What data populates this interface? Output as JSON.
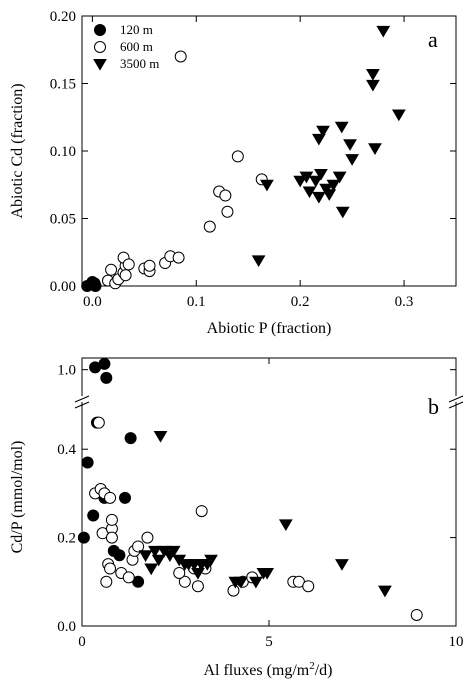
{
  "chart_data": [
    {
      "type": "scatter",
      "panel_label": "a",
      "xlabel": "Abiotic P (fraction)",
      "ylabel": "Abiotic Cd (fraction)",
      "xlim": [
        -0.01,
        0.35
      ],
      "ylim": [
        0,
        0.2
      ],
      "xticks": [
        {
          "value": 0.0,
          "label": "0.0"
        },
        {
          "value": 0.1,
          "label": "0.1"
        },
        {
          "value": 0.2,
          "label": "0.2"
        },
        {
          "value": 0.3,
          "label": "0.3"
        }
      ],
      "yticks": [
        {
          "value": 0.0,
          "label": "0.00"
        },
        {
          "value": 0.05,
          "label": "0.05"
        },
        {
          "value": 0.1,
          "label": "0.10"
        },
        {
          "value": 0.15,
          "label": "0.15"
        },
        {
          "value": 0.2,
          "label": "0.20"
        }
      ],
      "legend_position": "top-left",
      "series": [
        {
          "name": "120 m",
          "marker": "filled-circle",
          "points": [
            [
              -0.005,
              0.0
            ],
            [
              0.0,
              0.001
            ],
            [
              0.002,
              0.002
            ],
            [
              0.003,
              0.0
            ],
            [
              0.0,
              0.003
            ]
          ]
        },
        {
          "name": "600 m",
          "marker": "open-circle",
          "points": [
            [
              0.015,
              0.004
            ],
            [
              0.022,
              0.002
            ],
            [
              0.018,
              0.012
            ],
            [
              0.025,
              0.005
            ],
            [
              0.03,
              0.01
            ],
            [
              0.032,
              0.015
            ],
            [
              0.03,
              0.021
            ],
            [
              0.035,
              0.016
            ],
            [
              0.032,
              0.008
            ],
            [
              0.05,
              0.013
            ],
            [
              0.055,
              0.011
            ],
            [
              0.055,
              0.015
            ],
            [
              0.07,
              0.017
            ],
            [
              0.075,
              0.022
            ],
            [
              0.083,
              0.021
            ],
            [
              0.085,
              0.17
            ],
            [
              0.113,
              0.044
            ],
            [
              0.122,
              0.07
            ],
            [
              0.128,
              0.067
            ],
            [
              0.13,
              0.055
            ],
            [
              0.14,
              0.096
            ],
            [
              0.163,
              0.079
            ]
          ]
        },
        {
          "name": "3500 m",
          "marker": "filled-triangle-down",
          "points": [
            [
              0.16,
              0.019
            ],
            [
              0.168,
              0.075
            ],
            [
              0.2,
              0.078
            ],
            [
              0.206,
              0.081
            ],
            [
              0.209,
              0.07
            ],
            [
              0.215,
              0.078
            ],
            [
              0.218,
              0.066
            ],
            [
              0.22,
              0.083
            ],
            [
              0.225,
              0.072
            ],
            [
              0.228,
              0.068
            ],
            [
              0.232,
              0.075
            ],
            [
              0.238,
              0.081
            ],
            [
              0.241,
              0.055
            ],
            [
              0.218,
              0.109
            ],
            [
              0.222,
              0.115
            ],
            [
              0.24,
              0.118
            ],
            [
              0.248,
              0.105
            ],
            [
              0.25,
              0.094
            ],
            [
              0.27,
              0.157
            ],
            [
              0.27,
              0.149
            ],
            [
              0.272,
              0.102
            ],
            [
              0.28,
              0.189
            ],
            [
              0.295,
              0.127
            ]
          ]
        }
      ]
    },
    {
      "type": "scatter",
      "panel_label": "b",
      "xlabel_prefix": "Al fluxes (mg/m",
      "xlabel_sup": "2",
      "xlabel_suffix": "/d)",
      "ylabel": "Cd/P (mmol/mol)",
      "xlim": [
        0,
        10
      ],
      "y_axis_break": true,
      "ylim_lower": [
        0,
        0.5
      ],
      "ylim_upper": [
        0.9,
        1.05
      ],
      "xticks": [
        {
          "value": 0,
          "label": "0"
        },
        {
          "value": 5,
          "label": "5"
        },
        {
          "value": 10,
          "label": "10"
        }
      ],
      "yticks": [
        {
          "value": 0.0,
          "label": "0.0"
        },
        {
          "value": 0.2,
          "label": "0.2"
        },
        {
          "value": 0.4,
          "label": "0.4"
        },
        {
          "value": 1.0,
          "label": "1.0"
        }
      ],
      "series": [
        {
          "name": "120 m",
          "marker": "filled-circle",
          "points": [
            [
              0.05,
              0.2
            ],
            [
              0.15,
              0.37
            ],
            [
              0.3,
              0.25
            ],
            [
              0.35,
              1.01
            ],
            [
              0.6,
              0.29
            ],
            [
              0.6,
              1.025
            ],
            [
              0.65,
              0.965
            ],
            [
              0.85,
              0.17
            ],
            [
              1.15,
              0.29
            ],
            [
              1.3,
              0.425
            ],
            [
              1.5,
              0.1
            ],
            [
              0.4,
              0.46
            ],
            [
              1.0,
              0.16
            ]
          ]
        },
        {
          "name": "600 m",
          "marker": "open-circle",
          "points": [
            [
              0.35,
              0.3
            ],
            [
              0.45,
              0.46
            ],
            [
              0.5,
              0.31
            ],
            [
              0.55,
              0.21
            ],
            [
              0.6,
              0.3
            ],
            [
              0.75,
              0.29
            ],
            [
              0.8,
              0.22
            ],
            [
              0.8,
              0.24
            ],
            [
              0.7,
              0.14
            ],
            [
              0.75,
              0.13
            ],
            [
              0.65,
              0.1
            ],
            [
              0.8,
              0.2
            ],
            [
              1.05,
              0.12
            ],
            [
              1.25,
              0.11
            ],
            [
              1.35,
              0.15
            ],
            [
              1.4,
              0.17
            ],
            [
              1.5,
              0.18
            ],
            [
              1.75,
              0.2
            ],
            [
              2.75,
              0.1
            ],
            [
              3.0,
              0.13
            ],
            [
              3.1,
              0.09
            ],
            [
              3.2,
              0.26
            ],
            [
              4.05,
              0.08
            ],
            [
              4.3,
              0.1
            ],
            [
              4.55,
              0.11
            ],
            [
              5.65,
              0.1
            ],
            [
              5.8,
              0.1
            ],
            [
              6.05,
              0.09
            ],
            [
              8.95,
              0.025
            ],
            [
              2.6,
              0.12
            ],
            [
              3.3,
              0.13
            ]
          ]
        },
        {
          "name": "3500 m",
          "marker": "filled-triangle-down",
          "points": [
            [
              1.85,
              0.13
            ],
            [
              1.95,
              0.17
            ],
            [
              2.05,
              0.15
            ],
            [
              2.1,
              0.43
            ],
            [
              2.2,
              0.17
            ],
            [
              2.35,
              0.16
            ],
            [
              2.45,
              0.17
            ],
            [
              2.6,
              0.15
            ],
            [
              2.75,
              0.14
            ],
            [
              2.85,
              0.14
            ],
            [
              3.0,
              0.14
            ],
            [
              3.1,
              0.12
            ],
            [
              3.2,
              0.14
            ],
            [
              3.35,
              0.14
            ],
            [
              4.1,
              0.1
            ],
            [
              4.25,
              0.1
            ],
            [
              4.65,
              0.1
            ],
            [
              4.85,
              0.12
            ],
            [
              4.95,
              0.12
            ],
            [
              5.45,
              0.23
            ],
            [
              6.95,
              0.14
            ],
            [
              8.1,
              0.08
            ],
            [
              1.7,
              0.16
            ],
            [
              3.45,
              0.15
            ]
          ]
        }
      ]
    }
  ]
}
